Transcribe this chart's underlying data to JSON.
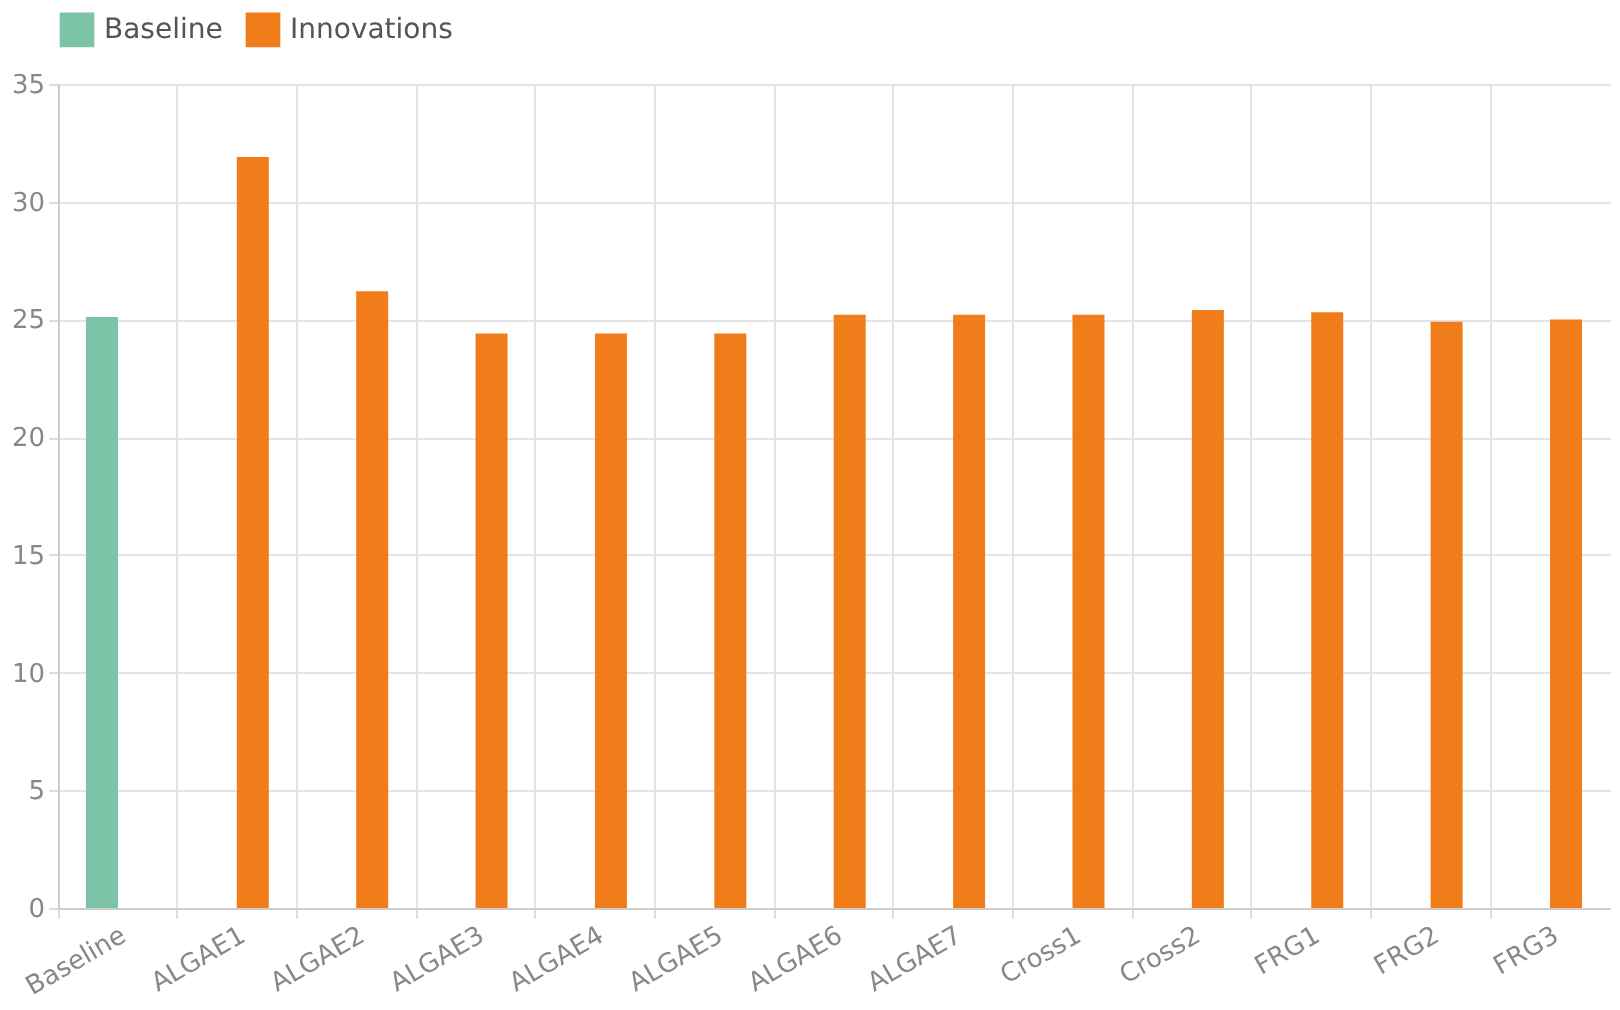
{
  "chart_data": {
    "type": "bar",
    "categories": [
      "Baseline",
      "ALGAE1",
      "ALGAE2",
      "ALGAE3",
      "ALGAE4",
      "ALGAE5",
      "ALGAE6",
      "ALGAE7",
      "Cross1",
      "Cross2",
      "FRG1",
      "FRG2",
      "FRG3"
    ],
    "series": [
      {
        "name": "Baseline",
        "color": "#7dc3a8",
        "values": [
          25.1,
          null,
          null,
          null,
          null,
          null,
          null,
          null,
          null,
          null,
          null,
          null,
          null
        ]
      },
      {
        "name": "Innovations",
        "color": "#f07d1a",
        "values": [
          null,
          31.9,
          26.2,
          24.4,
          24.4,
          24.4,
          25.2,
          25.2,
          25.2,
          25.4,
          25.3,
          24.9,
          25.0
        ]
      }
    ],
    "ylim": [
      0,
      35
    ],
    "yticks": [
      0,
      5,
      10,
      15,
      20,
      25,
      30,
      35
    ],
    "grid": true,
    "legend": "top"
  }
}
